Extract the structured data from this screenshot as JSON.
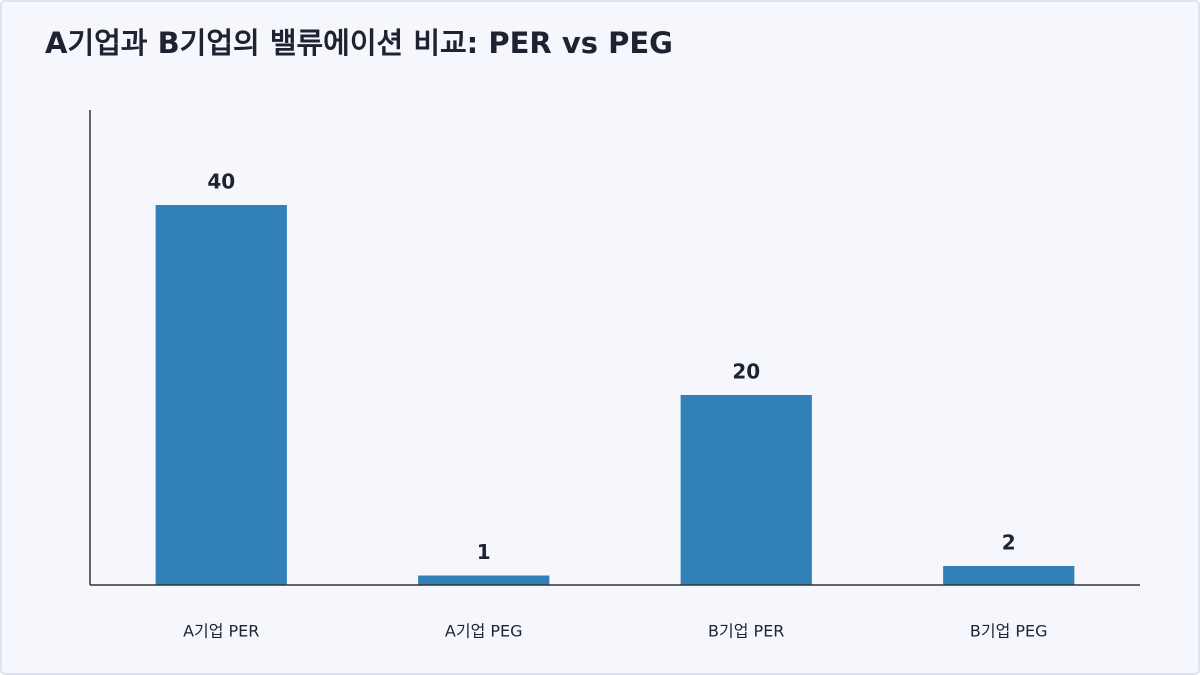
{
  "chart_data": {
    "type": "bar",
    "title": "A기업과 B기업의 밸류에이션 비교: PER vs PEG",
    "categories": [
      "A기업 PER",
      "A기업 PEG",
      "B기업 PER",
      "B기업 PEG"
    ],
    "values": [
      40,
      1,
      20,
      2
    ],
    "color": "#3280b8",
    "ylim": [
      0,
      50
    ]
  }
}
